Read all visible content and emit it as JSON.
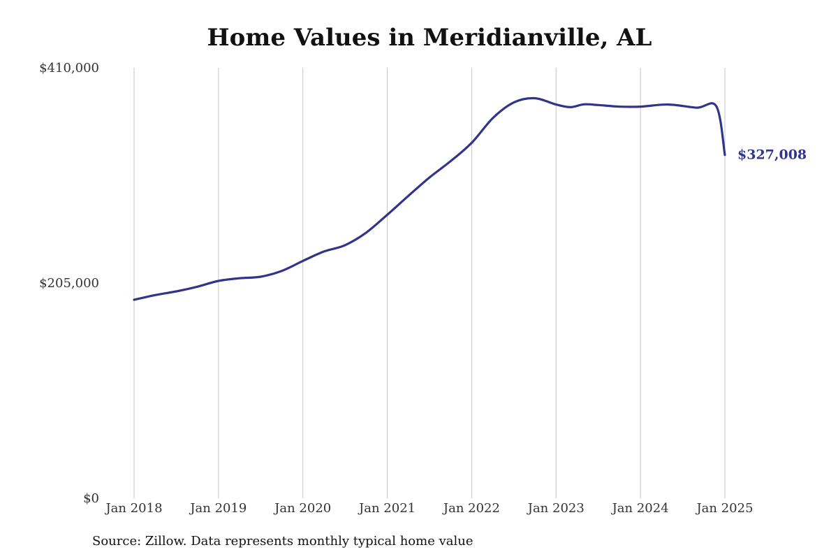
{
  "chart_data": {
    "type": "line",
    "title": "Home Values in Meridianville, AL",
    "source": "Source: Zillow. Data represents monthly typical home value",
    "x_ticks": [
      "Jan 2018",
      "Jan 2019",
      "Jan 2020",
      "Jan 2021",
      "Jan 2022",
      "Jan 2023",
      "Jan 2024",
      "Jan 2025"
    ],
    "y_ticks": [
      "$0",
      "$205,000",
      "$410,000"
    ],
    "ylim": [
      0,
      410000
    ],
    "xlim": [
      2018.0,
      2025.0
    ],
    "grid": "vertical",
    "line_color": "#32338a",
    "end_label": "$327,008",
    "series": [
      {
        "x": [
          2018.0,
          2018.25,
          2018.5,
          2018.75,
          2019.0,
          2019.25,
          2019.5,
          2019.75,
          2020.0,
          2020.25,
          2020.5,
          2020.75,
          2021.0,
          2021.25,
          2021.5,
          2021.75,
          2022.0,
          2022.25,
          2022.5,
          2022.75,
          2023.0,
          2023.17,
          2023.33,
          2023.5,
          2023.75,
          2024.0,
          2024.33,
          2024.67,
          2024.9,
          2025.0
        ],
        "values": [
          189000,
          193500,
          197000,
          201500,
          207000,
          209500,
          211000,
          216500,
          226000,
          235000,
          241000,
          253000,
          270000,
          288000,
          305500,
          321000,
          338500,
          362000,
          377000,
          381000,
          375000,
          372500,
          375200,
          374500,
          373000,
          373000,
          375000,
          372000,
          373200,
          327008
        ]
      }
    ]
  }
}
